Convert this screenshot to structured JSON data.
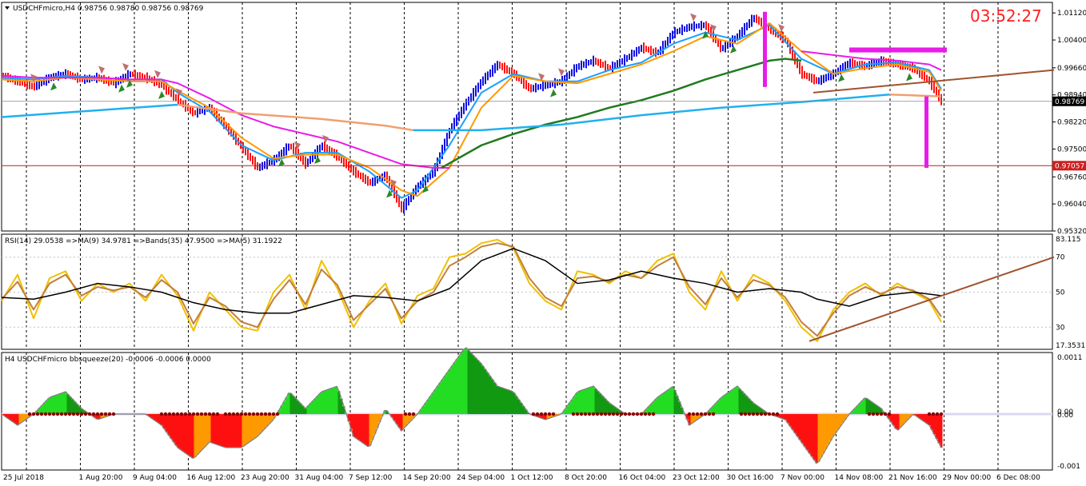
{
  "clock": "03:52:27",
  "colors": {
    "up_bar": "#1010e0",
    "down_bar": "#ff1010",
    "ma_fast": "#1aa0ff",
    "ma_orange": "#ff9900",
    "ma_green": "#1f7a1f",
    "ma_magenta": "#e81ce8",
    "ma_long": "#21b0ee",
    "ma_long_past": "#f0a070",
    "trendline": "#a0522d",
    "hline": "#b22222",
    "rsi_fast": "#f0c000",
    "rsi_ma": "#c08040",
    "rsi_bands": "#000000",
    "hist_green_light": "#22dd22",
    "hist_green_dark": "#119911",
    "hist_red": "#ff1010",
    "hist_orange": "#ff9900",
    "squeeze_dot": "#8b0000",
    "arrow_sell": "#c07070",
    "arrow_buy": "#2a8a2a",
    "zero_line": "#d8d8f0"
  },
  "chart_data": [
    {
      "type": "candlestick",
      "title": "USDCHFmicro,H4  0.98756 0.98780 0.98756 0.98769",
      "ylim": [
        0.9532,
        1.014
      ],
      "yticks": [
        "1.01120",
        "1.00400",
        "0.99660",
        "0.98940",
        "0.98220",
        "0.97500",
        "0.96760",
        "0.96040",
        "0.95320"
      ],
      "ytick_values": [
        1.0112,
        1.004,
        0.9966,
        0.9894,
        0.9822,
        0.975,
        0.9676,
        0.9604,
        0.9532
      ],
      "xticks": [
        "25 Jul 2018",
        "1 Aug 20:00",
        "9 Aug 04:00",
        "16 Aug 12:00",
        "23 Aug 20:00",
        "31 Aug 04:00",
        "7 Sep 12:00",
        "14 Sep 20:00",
        "24 Sep 04:00",
        "1 Oct 12:00",
        "8 Oct 20:00",
        "16 Oct 04:00",
        "23 Oct 12:00",
        "30 Oct 16:00",
        "7 Nov 00:00",
        "14 Nov 08:00",
        "21 Nov 16:00",
        "29 Nov 00:00",
        "6 Dec 08:00"
      ],
      "price_labels": [
        {
          "text": "0.98769",
          "value": 0.98769,
          "style": "current"
        },
        {
          "text": "0.97057",
          "value": 0.97057,
          "style": "level"
        }
      ],
      "series": [
        {
          "kind": "price",
          "x": [
            0,
            20,
            40,
            60,
            80,
            100,
            120,
            140,
            160,
            180,
            200,
            220,
            240,
            260,
            280,
            300,
            320,
            340,
            360,
            380,
            400,
            420,
            440,
            460,
            480,
            500,
            520,
            540,
            560,
            580,
            600,
            620,
            640,
            660,
            680,
            700,
            720,
            740,
            760,
            780,
            800,
            820,
            840,
            860,
            880,
            900,
            920,
            940,
            960,
            980,
            1000,
            1020,
            1040,
            1060,
            1080,
            1100,
            1120,
            1140,
            1160,
            1175
          ],
          "y": [
            0.9945,
            0.993,
            0.9915,
            0.994,
            0.995,
            0.9935,
            0.994,
            0.9925,
            0.995,
            0.994,
            0.992,
            0.988,
            0.9845,
            0.986,
            0.981,
            0.9755,
            0.97,
            0.972,
            0.976,
            0.971,
            0.976,
            0.973,
            0.969,
            0.966,
            0.968,
            0.959,
            0.965,
            0.969,
            0.98,
            0.987,
            0.993,
            0.9975,
            0.995,
            0.991,
            0.992,
            0.993,
            0.997,
            0.9985,
            0.9965,
            0.999,
            1.002,
            1.0005,
            1.006,
            1.0075,
            1.008,
            1.0015,
            1.005,
            1.01,
            1.007,
            1.004,
            0.995,
            0.993,
            0.995,
            0.998,
            0.997,
            0.9985,
            0.9975,
            0.9965,
            0.993,
            0.9876
          ]
        },
        {
          "kind": "ma_fast",
          "x": [
            0,
            40,
            80,
            120,
            160,
            200,
            220,
            260,
            300,
            340,
            380,
            420,
            460,
            500,
            520,
            560,
            600,
            640,
            680,
            720,
            760,
            800,
            840,
            880,
            920,
            960,
            1000,
            1040,
            1080,
            1120,
            1160,
            1175
          ],
          "y": [
            0.994,
            0.9935,
            0.9945,
            0.994,
            0.9935,
            0.9935,
            0.99,
            0.985,
            0.976,
            0.972,
            0.974,
            0.974,
            0.969,
            0.962,
            0.964,
            0.976,
            0.99,
            0.995,
            0.993,
            0.993,
            0.996,
            0.998,
            1.003,
            1.006,
            1.004,
            1.008,
            0.999,
            0.995,
            0.9975,
            0.998,
            0.996,
            0.991
          ]
        },
        {
          "kind": "ma_orange",
          "x": [
            0,
            40,
            80,
            120,
            160,
            200,
            220,
            260,
            300,
            340,
            380,
            420,
            460,
            500,
            520,
            560,
            600,
            640,
            680,
            720,
            760,
            800,
            840,
            880,
            920,
            960,
            1000,
            1040,
            1080,
            1120,
            1160,
            1175
          ],
          "y": [
            0.9935,
            0.993,
            0.994,
            0.9935,
            0.993,
            0.993,
            0.9905,
            0.986,
            0.978,
            0.9725,
            0.9735,
            0.9735,
            0.97,
            0.964,
            0.9625,
            0.97,
            0.986,
            0.9945,
            0.993,
            0.9925,
            0.995,
            0.9975,
            1.001,
            1.005,
            1.003,
            1.0085,
            1.001,
            0.995,
            0.9965,
            0.9975,
            0.9955,
            0.9905
          ]
        },
        {
          "kind": "ma_magenta",
          "x": [
            0,
            40,
            80,
            120,
            160,
            200,
            220,
            260,
            300,
            340,
            380,
            420,
            460,
            500,
            540,
            560
          ],
          "y": [
            0.9945,
            0.994,
            0.994,
            0.994,
            0.9935,
            0.9935,
            0.9925,
            0.9885,
            0.984,
            0.981,
            0.979,
            0.977,
            0.974,
            0.971,
            0.97,
            0.97
          ]
        },
        {
          "kind": "ma_magenta",
          "x": [
            1000,
            1040,
            1080,
            1120,
            1160,
            1175
          ],
          "y": [
            1.001,
            1.0,
            0.999,
            0.9985,
            0.9975,
            0.996
          ]
        },
        {
          "kind": "ma_green",
          "x": [
            550,
            600,
            640,
            680,
            720,
            760,
            800,
            840,
            880,
            920,
            960,
            980,
            1000
          ],
          "y": [
            0.97,
            0.976,
            0.979,
            0.9815,
            0.9835,
            0.986,
            0.988,
            0.9905,
            0.9935,
            0.996,
            0.9985,
            0.999,
            0.9985
          ]
        },
        {
          "kind": "ma_long",
          "x": [
            0,
            100,
            200,
            220
          ],
          "y": [
            0.9835,
            0.985,
            0.9865,
            0.9868
          ]
        },
        {
          "kind": "ma_long_past",
          "x": [
            220,
            300,
            400,
            480,
            515
          ],
          "y": [
            0.9868,
            0.9845,
            0.983,
            0.9812,
            0.98
          ]
        },
        {
          "kind": "ma_long",
          "x": [
            515,
            600,
            700,
            800,
            900,
            1000,
            1110
          ],
          "y": [
            0.98,
            0.98,
            0.9815,
            0.984,
            0.986,
            0.9875,
            0.9895
          ]
        },
        {
          "kind": "ma_long_past",
          "x": [
            1110,
            1175
          ],
          "y": [
            0.9895,
            0.989
          ]
        },
        {
          "kind": "trendline",
          "x": [
            1015,
            1316
          ],
          "y": [
            0.99,
            0.996
          ]
        },
        {
          "kind": "hline",
          "x": [
            0,
            1316
          ],
          "y": [
            0.97057,
            0.97057
          ]
        },
        {
          "kind": "current",
          "x": [
            0,
            1316
          ],
          "y": [
            0.98769,
            0.98769
          ]
        }
      ]
    },
    {
      "type": "line",
      "title": "RSI(14) 29.0538  =>MA(9) 34.9781  =>Bands(35) 47.9500  =>MA(5) 31.1922",
      "ylim": [
        17.3531,
        83.115
      ],
      "yticks": [
        "83.115",
        "70",
        "50",
        "30",
        "17.3531"
      ],
      "ytick_values": [
        83.115,
        70,
        50,
        30,
        17.3531
      ],
      "series": [
        {
          "kind": "rsi_fast",
          "x": [
            0,
            20,
            40,
            60,
            80,
            100,
            120,
            140,
            160,
            180,
            200,
            220,
            240,
            260,
            280,
            300,
            320,
            340,
            360,
            380,
            400,
            420,
            440,
            460,
            480,
            500,
            520,
            540,
            560,
            580,
            600,
            620,
            640,
            660,
            680,
            700,
            720,
            740,
            760,
            780,
            800,
            820,
            840,
            860,
            880,
            900,
            920,
            940,
            960,
            980,
            1000,
            1020,
            1040,
            1060,
            1080,
            1100,
            1120,
            1140,
            1160,
            1175
          ],
          "y": [
            45,
            60,
            35,
            58,
            62,
            45,
            55,
            50,
            55,
            45,
            60,
            48,
            28,
            50,
            40,
            30,
            28,
            50,
            60,
            40,
            68,
            52,
            30,
            45,
            55,
            32,
            48,
            52,
            70,
            72,
            78,
            80,
            75,
            55,
            45,
            40,
            62,
            60,
            55,
            62,
            58,
            68,
            72,
            50,
            40,
            62,
            45,
            60,
            55,
            45,
            30,
            22,
            40,
            50,
            55,
            48,
            55,
            50,
            45,
            33
          ]
        },
        {
          "kind": "rsi_ma",
          "x": [
            0,
            20,
            40,
            60,
            80,
            100,
            120,
            140,
            160,
            180,
            200,
            220,
            240,
            260,
            280,
            300,
            320,
            340,
            360,
            380,
            400,
            420,
            440,
            460,
            480,
            500,
            520,
            540,
            560,
            580,
            600,
            620,
            640,
            660,
            680,
            700,
            720,
            740,
            760,
            780,
            800,
            820,
            840,
            860,
            880,
            900,
            920,
            940,
            960,
            980,
            1000,
            1020,
            1040,
            1060,
            1080,
            1100,
            1120,
            1140,
            1160,
            1175
          ],
          "y": [
            46,
            56,
            40,
            55,
            60,
            48,
            53,
            51,
            53,
            47,
            57,
            50,
            32,
            47,
            42,
            33,
            30,
            46,
            57,
            43,
            63,
            54,
            34,
            43,
            52,
            35,
            45,
            50,
            65,
            70,
            76,
            78,
            76,
            58,
            47,
            42,
            58,
            59,
            56,
            60,
            58,
            65,
            70,
            53,
            43,
            58,
            47,
            57,
            54,
            47,
            33,
            25,
            38,
            48,
            53,
            49,
            53,
            51,
            46,
            36
          ]
        },
        {
          "kind": "rsi_bands",
          "x": [
            0,
            40,
            80,
            120,
            160,
            200,
            240,
            280,
            320,
            360,
            400,
            440,
            480,
            520,
            560,
            600,
            640,
            680,
            720,
            760,
            800,
            840,
            880,
            920,
            960,
            1000,
            1020,
            1060,
            1100,
            1140,
            1175
          ],
          "y": [
            47,
            46,
            50,
            55,
            53,
            50,
            44,
            40,
            38,
            38,
            43,
            48,
            47,
            45,
            52,
            68,
            75,
            68,
            55,
            57,
            62,
            58,
            55,
            50,
            52,
            50,
            46,
            42,
            48,
            50,
            48
          ]
        },
        {
          "kind": "trendline",
          "x": [
            1010,
            1316
          ],
          "y": [
            22,
            70
          ]
        }
      ]
    },
    {
      "type": "bar",
      "title": "H4 USDCHFmicro bbsqueeze(20) -0.0006 -0.0006 0.0000",
      "ylim": [
        -0.001,
        0.0011
      ],
      "yticks": [
        "0.0011",
        "0.00",
        "0.00",
        "-0.001"
      ],
      "ytick_values": [
        0.0011,
        0.0,
        0.0,
        -0.001
      ],
      "series": [
        {
          "kind": "histogram",
          "x": [
            0,
            20,
            40,
            60,
            80,
            100,
            120,
            140,
            160,
            180,
            200,
            220,
            240,
            260,
            280,
            300,
            320,
            340,
            360,
            380,
            400,
            420,
            440,
            460,
            480,
            500,
            520,
            540,
            560,
            580,
            600,
            620,
            640,
            660,
            680,
            700,
            720,
            740,
            760,
            780,
            800,
            820,
            840,
            860,
            880,
            900,
            920,
            940,
            960,
            980,
            1000,
            1020,
            1040,
            1060,
            1080,
            1100,
            1120,
            1140,
            1160,
            1175
          ],
          "y": [
            0.0,
            -0.0002,
            0.0,
            0.0003,
            0.0004,
            0.0001,
            -0.0001,
            0.0,
            0.0,
            0.0,
            -0.0002,
            -0.0006,
            -0.0008,
            -0.0005,
            -0.0006,
            -0.0006,
            -0.0004,
            -0.0001,
            0.0004,
            0.0001,
            0.0004,
            0.0005,
            -0.0004,
            -0.0006,
            0.0001,
            -0.0003,
            0.0,
            0.0004,
            0.0008,
            0.0012,
            0.0009,
            0.0005,
            0.0004,
            0.0,
            -0.0001,
            0.0,
            0.0004,
            0.0005,
            0.0002,
            0.0,
            0.0,
            0.0003,
            0.0005,
            -0.0002,
            0.0,
            0.0003,
            0.0005,
            0.0002,
            0.0,
            -0.0001,
            -0.0005,
            -0.0009,
            -0.0004,
            0.0,
            0.0003,
            0.0001,
            -0.0003,
            0.0,
            -0.0002,
            -0.0006
          ]
        }
      ]
    }
  ]
}
